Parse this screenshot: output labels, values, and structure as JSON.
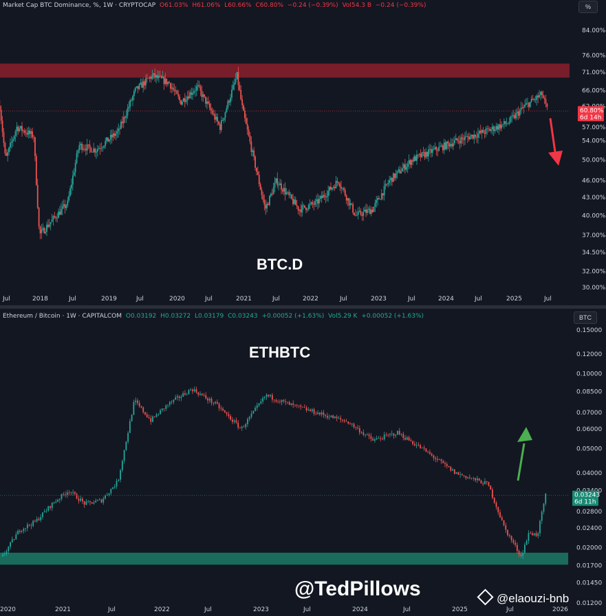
{
  "top_header": {
    "symbol": "Market Cap BTC Dominance, %",
    "interval": "1W",
    "exchange": "CRYPTOCAP",
    "o": "O61.03%",
    "h": "H61.06%",
    "l": "L60.66%",
    "c": "C60.80%",
    "change": "−0.24 (−0.39%)",
    "vol": "Vol54.3 B",
    "vol_change": "−0.24 (−0.39%)",
    "scale_button": "%"
  },
  "bottom_header": {
    "symbol": "Ethereum / Bitcoin",
    "interval": "1W",
    "exchange": "CAPITALCOM",
    "o": "O0.03192",
    "h": "H0.03272",
    "l": "L0.03179",
    "c": "C0.03243",
    "change": "+0.00052 (+1.63%)",
    "vol": "Vol5.29 K",
    "vol_change": "+0.00052 (+1.63%)",
    "scale_button": "BTC"
  },
  "watermarks": {
    "handle": "@TedPillows",
    "source": "@elaouzi-bnb"
  },
  "colors": {
    "background": "#131722",
    "up": "#26a69a",
    "down": "#ef5350",
    "resistance_zone": "#7a1f28",
    "support_zone": "#1a6b5c",
    "arrow_down": "#f23645",
    "arrow_up": "#4caf50"
  },
  "chart_data": [
    {
      "type": "candlestick",
      "title": "BTC.D",
      "price_labels": [
        "84.00%",
        "76.00%",
        "71.00%",
        "66.00%",
        "62.00%",
        "57.00%",
        "54.00%",
        "50.00%",
        "46.00%",
        "43.00%",
        "40.00%",
        "37.00%",
        "34.50%",
        "32.00%",
        "30.00%"
      ],
      "x_labels": [
        "Jul",
        "2018",
        "Jul",
        "2019",
        "Jul",
        "2020",
        "Jul",
        "2021",
        "Jul",
        "2022",
        "Jul",
        "2023",
        "Jul",
        "2024",
        "Jul",
        "2025",
        "Jul"
      ],
      "y_scale": "log",
      "ylim": [
        30,
        84
      ],
      "last_price": "60.80%",
      "countdown": "6d 14h",
      "zone": {
        "label": "resistance",
        "from": 69.5,
        "to": 73.5
      },
      "series": [
        {
          "date": "2017-06",
          "close": 62
        },
        {
          "date": "2017-07",
          "close": 50
        },
        {
          "date": "2017-09",
          "close": 57
        },
        {
          "date": "2017-12",
          "close": 55
        },
        {
          "date": "2018-01",
          "close": 37
        },
        {
          "date": "2018-04",
          "close": 40
        },
        {
          "date": "2018-06",
          "close": 42
        },
        {
          "date": "2018-08",
          "close": 53
        },
        {
          "date": "2018-11",
          "close": 52
        },
        {
          "date": "2019-03",
          "close": 56
        },
        {
          "date": "2019-06",
          "close": 66
        },
        {
          "date": "2019-09",
          "close": 70
        },
        {
          "date": "2019-12",
          "close": 68
        },
        {
          "date": "2020-02",
          "close": 63
        },
        {
          "date": "2020-05",
          "close": 67
        },
        {
          "date": "2020-09",
          "close": 57
        },
        {
          "date": "2020-12",
          "close": 70
        },
        {
          "date": "2021-01",
          "close": 61
        },
        {
          "date": "2021-05",
          "close": 41
        },
        {
          "date": "2021-07",
          "close": 46
        },
        {
          "date": "2021-11",
          "close": 41
        },
        {
          "date": "2022-02",
          "close": 42
        },
        {
          "date": "2022-06",
          "close": 46
        },
        {
          "date": "2022-09",
          "close": 40
        },
        {
          "date": "2022-12",
          "close": 41
        },
        {
          "date": "2023-03",
          "close": 46
        },
        {
          "date": "2023-07",
          "close": 50
        },
        {
          "date": "2023-11",
          "close": 52
        },
        {
          "date": "2024-03",
          "close": 54
        },
        {
          "date": "2024-08",
          "close": 56
        },
        {
          "date": "2024-12",
          "close": 58
        },
        {
          "date": "2025-03",
          "close": 62
        },
        {
          "date": "2025-06",
          "close": 65
        },
        {
          "date": "2025-07",
          "close": 60.8
        }
      ]
    },
    {
      "type": "candlestick",
      "title": "ETHBTC",
      "price_labels": [
        "0.15000",
        "0.12000",
        "0.10000",
        "0.08500",
        "0.07000",
        "0.06000",
        "0.05000",
        "0.04000",
        "0.03400",
        "0.02800",
        "0.02400",
        "0.02000",
        "0.01700",
        "0.01450",
        "0.01200"
      ],
      "x_labels": [
        "2020",
        "2021",
        "Jul",
        "2022",
        "Jul",
        "2023",
        "Jul",
        "2024",
        "Jul",
        "2025",
        "Jul",
        "2026"
      ],
      "y_scale": "log",
      "ylim": [
        0.012,
        0.15
      ],
      "last_price": "0.03243",
      "countdown": "6d 11h",
      "zone": {
        "label": "support",
        "from": 0.0171,
        "to": 0.0191
      },
      "series": [
        {
          "date": "2020-01",
          "close": 0.0185
        },
        {
          "date": "2020-03",
          "close": 0.0235
        },
        {
          "date": "2020-05",
          "close": 0.0255
        },
        {
          "date": "2020-07",
          "close": 0.03
        },
        {
          "date": "2020-09",
          "close": 0.034
        },
        {
          "date": "2020-11",
          "close": 0.03
        },
        {
          "date": "2021-01",
          "close": 0.031
        },
        {
          "date": "2021-03",
          "close": 0.037
        },
        {
          "date": "2021-05",
          "close": 0.078
        },
        {
          "date": "2021-07",
          "close": 0.065
        },
        {
          "date": "2021-09",
          "close": 0.075
        },
        {
          "date": "2021-12",
          "close": 0.087
        },
        {
          "date": "2022-03",
          "close": 0.075
        },
        {
          "date": "2022-06",
          "close": 0.06
        },
        {
          "date": "2022-09",
          "close": 0.082
        },
        {
          "date": "2022-12",
          "close": 0.075
        },
        {
          "date": "2023-03",
          "close": 0.07
        },
        {
          "date": "2023-07",
          "close": 0.064
        },
        {
          "date": "2023-10",
          "close": 0.054
        },
        {
          "date": "2024-01",
          "close": 0.058
        },
        {
          "date": "2024-04",
          "close": 0.05
        },
        {
          "date": "2024-08",
          "close": 0.04
        },
        {
          "date": "2024-12",
          "close": 0.036
        },
        {
          "date": "2025-02",
          "close": 0.024
        },
        {
          "date": "2025-04",
          "close": 0.0185
        },
        {
          "date": "2025-05",
          "close": 0.023
        },
        {
          "date": "2025-06",
          "close": 0.0225
        },
        {
          "date": "2025-07",
          "close": 0.03243
        }
      ]
    }
  ]
}
